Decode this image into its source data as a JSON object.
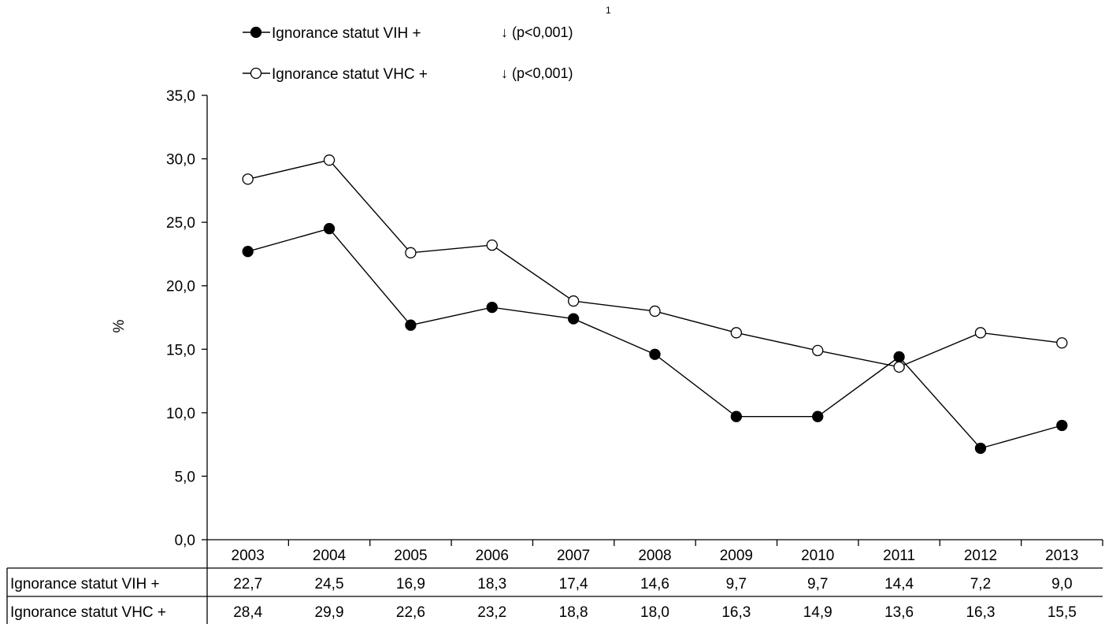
{
  "chart_data": {
    "type": "line",
    "categories": [
      "2003",
      "2004",
      "2005",
      "2006",
      "2007",
      "2008",
      "2009",
      "2010",
      "2011",
      "2012",
      "2013"
    ],
    "series": [
      {
        "name": "Ignorance statut VIH +",
        "marker": "filled-circle",
        "trend": "↓ (p<0,001)",
        "trend_note": "1",
        "values": [
          22.7,
          24.5,
          16.9,
          18.3,
          17.4,
          14.6,
          9.7,
          9.7,
          14.4,
          7.2,
          9.0
        ]
      },
      {
        "name": "Ignorance statut VHC +",
        "marker": "open-circle",
        "trend": "↓ (p<0,001)",
        "values": [
          28.4,
          29.9,
          22.6,
          23.2,
          18.8,
          18.0,
          16.3,
          14.9,
          13.6,
          16.3,
          15.5
        ]
      }
    ],
    "ylabel": "%",
    "ylim": [
      0,
      35
    ],
    "yticks": [
      0,
      5,
      10,
      15,
      20,
      25,
      30,
      35
    ],
    "ytick_labels": [
      "0,0",
      "5,0",
      "10,0",
      "15,0",
      "20,0",
      "25,0",
      "30,0",
      "35,0"
    ],
    "grid": false,
    "legend_position": "top-left",
    "data_table": {
      "rows": [
        {
          "label": "Ignorance statut VIH +",
          "cells": [
            "22,7",
            "24,5",
            "16,9",
            "18,3",
            "17,4",
            "14,6",
            "9,7",
            "9,7",
            "14,4",
            "7,2",
            "9,0"
          ]
        },
        {
          "label": "Ignorance statut VHC +",
          "cells": [
            "28,4",
            "29,9",
            "22,6",
            "23,2",
            "18,8",
            "18,0",
            "16,3",
            "14,9",
            "13,6",
            "16,3",
            "15,5"
          ]
        }
      ]
    },
    "colors": {
      "line": "#000000",
      "filled_marker": "#000000",
      "open_marker_fill": "#ffffff"
    }
  }
}
